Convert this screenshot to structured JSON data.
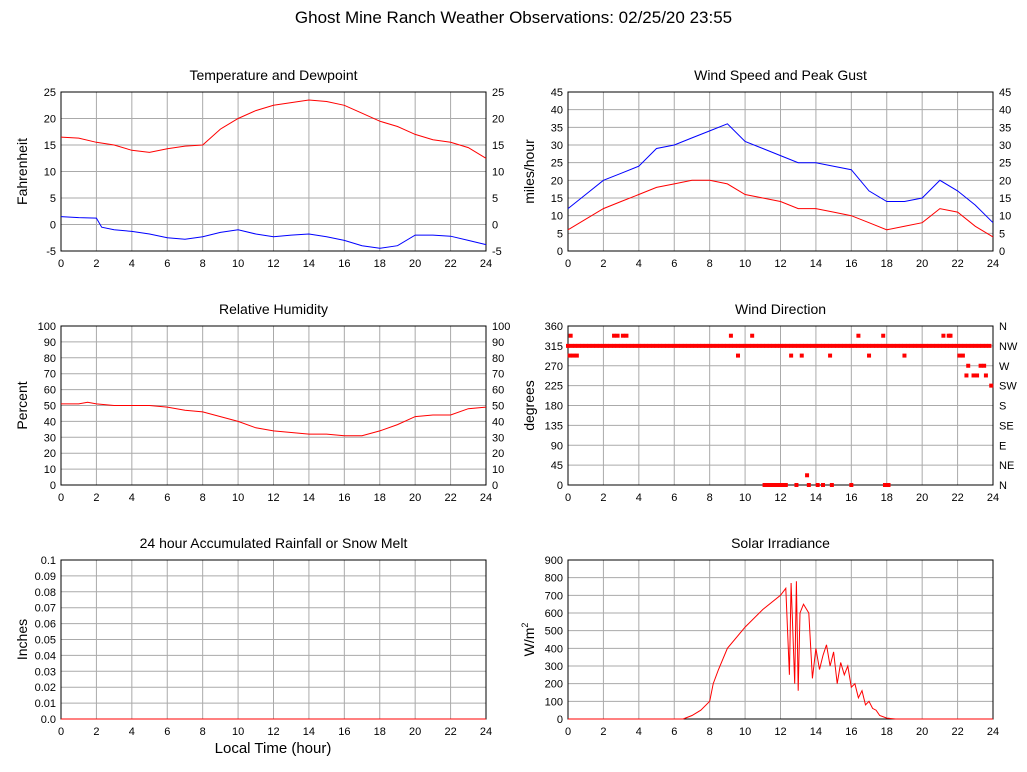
{
  "page_title": "Ghost Mine Ranch Weather Observations: 02/25/20 23:55",
  "shared_xlabel": "Local Time (hour)",
  "colors": {
    "red": "#ff0000",
    "blue": "#0000ff",
    "grid": "#aaaaaa",
    "axes": "#000000"
  },
  "chart_data": [
    {
      "id": "temp",
      "type": "line",
      "title": "Temperature and Dewpoint",
      "ylabel": "Fahrenheit",
      "xlim": [
        0,
        24
      ],
      "ylim": [
        -5,
        25
      ],
      "xticks": [
        0,
        2,
        4,
        6,
        8,
        10,
        12,
        14,
        16,
        18,
        20,
        22,
        24
      ],
      "yticks": [
        -5,
        0,
        5,
        10,
        15,
        20,
        25
      ],
      "right_axis_labels": [
        "-5",
        "0",
        "5",
        "10",
        "15",
        "20",
        "25"
      ],
      "series": [
        {
          "color": "#ff0000",
          "x": [
            0,
            1,
            2,
            3,
            4,
            5,
            6,
            7,
            8,
            9,
            10,
            11,
            12,
            13,
            14,
            15,
            16,
            17,
            18,
            19,
            20,
            21,
            22,
            23,
            24
          ],
          "y": [
            16.5,
            16.3,
            15.5,
            15,
            14,
            13.6,
            14.3,
            14.8,
            15,
            18,
            20,
            21.5,
            22.5,
            23,
            23.5,
            23.2,
            22.5,
            21,
            19.5,
            18.5,
            17,
            16,
            15.5,
            14.5,
            12.5
          ]
        },
        {
          "color": "#0000ff",
          "x": [
            0,
            1,
            2,
            2.3,
            3,
            4,
            5,
            6,
            7,
            8,
            9,
            10,
            11,
            12,
            13,
            14,
            15,
            16,
            17,
            18,
            19,
            20,
            21,
            22,
            23,
            24
          ],
          "y": [
            1.5,
            1.3,
            1.2,
            -0.5,
            -1,
            -1.3,
            -1.8,
            -2.5,
            -2.8,
            -2.3,
            -1.5,
            -1,
            -1.8,
            -2.3,
            -2,
            -1.8,
            -2.3,
            -3,
            -4,
            -4.5,
            -4,
            -2,
            -2,
            -2.2,
            -3,
            -3.8
          ]
        }
      ]
    },
    {
      "id": "wind",
      "type": "line",
      "title": "Wind Speed and Peak Gust",
      "ylabel": "miles/hour",
      "xlim": [
        0,
        24
      ],
      "ylim": [
        0,
        45
      ],
      "xticks": [
        0,
        2,
        4,
        6,
        8,
        10,
        12,
        14,
        16,
        18,
        20,
        22,
        24
      ],
      "yticks": [
        0,
        5,
        10,
        15,
        20,
        25,
        30,
        35,
        40,
        45
      ],
      "right_axis_labels": [
        "0",
        "5",
        "10",
        "15",
        "20",
        "25",
        "30",
        "35",
        "40",
        "45"
      ],
      "series": [
        {
          "color": "#0000ff",
          "x": [
            0,
            1,
            2,
            3,
            4,
            5,
            6,
            7,
            8,
            9,
            10,
            11,
            12,
            13,
            14,
            15,
            16,
            17,
            18,
            19,
            20,
            21,
            22,
            23,
            24
          ],
          "y": [
            12,
            16,
            20,
            22,
            24,
            29,
            30,
            32,
            34,
            36,
            31,
            29,
            27,
            25,
            25,
            24,
            23,
            17,
            14,
            14,
            15,
            20,
            17,
            13,
            8
          ]
        },
        {
          "color": "#ff0000",
          "x": [
            0,
            1,
            2,
            3,
            4,
            5,
            6,
            7,
            8,
            9,
            10,
            11,
            12,
            13,
            14,
            15,
            16,
            17,
            18,
            19,
            20,
            21,
            22,
            23,
            24
          ],
          "y": [
            6,
            9,
            12,
            14,
            16,
            18,
            19,
            20,
            20,
            19,
            16,
            15,
            14,
            12,
            12,
            11,
            10,
            8,
            6,
            7,
            8,
            12,
            11,
            7,
            4
          ]
        }
      ]
    },
    {
      "id": "rh",
      "type": "line",
      "title": "Relative Humidity",
      "ylabel": "Percent",
      "xlim": [
        0,
        24
      ],
      "ylim": [
        0,
        100
      ],
      "xticks": [
        0,
        2,
        4,
        6,
        8,
        10,
        12,
        14,
        16,
        18,
        20,
        22,
        24
      ],
      "yticks": [
        0,
        10,
        20,
        30,
        40,
        50,
        60,
        70,
        80,
        90,
        100
      ],
      "right_axis_labels": [
        "0",
        "10",
        "20",
        "30",
        "40",
        "50",
        "60",
        "70",
        "80",
        "90",
        "100"
      ],
      "series": [
        {
          "color": "#ff0000",
          "x": [
            0,
            1,
            1.5,
            2,
            3,
            4,
            5,
            6,
            7,
            8,
            9,
            10,
            11,
            12,
            13,
            14,
            15,
            16,
            17,
            18,
            19,
            20,
            21,
            22,
            23,
            24
          ],
          "y": [
            51,
            51,
            52,
            51,
            50,
            50,
            50,
            49,
            47,
            46,
            43,
            40,
            36,
            34,
            33,
            32,
            32,
            31,
            31,
            34,
            38,
            43,
            44,
            44,
            48,
            49
          ]
        }
      ]
    },
    {
      "id": "dir",
      "type": "scatter",
      "title": "Wind Direction",
      "ylabel": "degrees",
      "xlim": [
        0,
        24
      ],
      "ylim": [
        0,
        360
      ],
      "xticks": [
        0,
        2,
        4,
        6,
        8,
        10,
        12,
        14,
        16,
        18,
        20,
        22,
        24
      ],
      "yticks": [
        0,
        45,
        90,
        135,
        180,
        225,
        270,
        315,
        360
      ],
      "right_axis_labels": [
        "N",
        "NE",
        "E",
        "SE",
        "S",
        "SW",
        "W",
        "NW",
        "N"
      ],
      "series": [
        {
          "color": "#ff0000",
          "x": [
            0,
            0.2,
            0.4,
            0.6,
            0.8,
            1,
            1.2,
            1.4,
            1.6,
            1.8,
            2,
            2.2,
            2.4,
            2.6,
            2.8,
            3,
            3.2,
            3.4,
            3.6,
            3.8,
            4,
            4.2,
            4.4,
            4.6,
            4.8,
            5,
            5.2,
            5.4,
            5.6,
            5.8,
            6,
            6.2,
            6.4,
            6.6,
            6.8,
            7,
            7.2,
            7.4,
            7.6,
            7.8,
            8,
            8.2,
            8.4,
            8.6,
            8.8,
            9,
            9.2,
            9.4,
            9.6,
            9.8,
            10,
            10.2,
            10.4,
            10.6,
            10.8,
            11,
            11.2,
            11.4,
            11.6,
            11.8,
            12,
            12.2,
            12.4,
            12.6,
            12.8,
            13,
            13.2,
            13.4,
            13.6,
            13.8,
            14,
            14.2,
            14.4,
            14.6,
            14.8,
            15,
            15.2,
            15.4,
            15.6,
            15.8,
            16,
            16.2,
            16.4,
            16.6,
            16.8,
            17,
            17.2,
            17.4,
            17.6,
            17.8,
            18,
            18.2,
            18.4,
            18.6,
            18.8,
            19,
            19.2,
            19.4,
            19.6,
            19.8,
            20,
            20.2,
            20.4,
            20.6,
            20.8,
            21,
            21.2,
            21.4,
            21.6,
            21.8,
            22,
            22.2,
            22.4,
            22.6,
            22.8,
            23,
            23.2,
            23.4,
            23.6,
            23.8,
            0.1,
            0.3,
            0.5,
            2.6,
            2.8,
            3.1,
            3.3,
            9.2,
            9.6,
            10.4,
            11.1,
            11.3,
            11.5,
            11.7,
            11.9,
            12.1,
            12.3,
            12.9,
            13.6,
            14.1,
            14.4,
            14.9,
            16,
            17.9,
            18.1,
            12.6,
            13.2,
            14.8,
            17,
            19,
            21.2,
            21.6,
            22.3,
            22.6,
            22.9,
            23.3,
            23.6,
            22.1,
            23.1,
            23.5,
            23.9,
            0.15,
            13.5,
            16.4,
            17.8,
            21.5,
            22.5
          ],
          "y": [
            315,
            315,
            315,
            315,
            315,
            315,
            315,
            315,
            315,
            315,
            315,
            315,
            315,
            315,
            315,
            315,
            315,
            315,
            315,
            315,
            315,
            315,
            315,
            315,
            315,
            315,
            315,
            315,
            315,
            315,
            315,
            315,
            315,
            315,
            315,
            315,
            315,
            315,
            315,
            315,
            315,
            315,
            315,
            315,
            315,
            315,
            315,
            315,
            315,
            315,
            315,
            315,
            315,
            315,
            315,
            315,
            315,
            315,
            315,
            315,
            315,
            315,
            315,
            315,
            315,
            315,
            315,
            315,
            315,
            315,
            315,
            315,
            315,
            315,
            315,
            315,
            315,
            315,
            315,
            315,
            315,
            315,
            315,
            315,
            315,
            315,
            315,
            315,
            315,
            315,
            315,
            315,
            315,
            315,
            315,
            315,
            315,
            315,
            315,
            315,
            315,
            315,
            315,
            315,
            315,
            315,
            315,
            315,
            315,
            315,
            315,
            315,
            315,
            315,
            315,
            315,
            315,
            315,
            315,
            315,
            293,
            293,
            293,
            338,
            338,
            338,
            338,
            338,
            293,
            338,
            0,
            0,
            0,
            0,
            0,
            0,
            0,
            0,
            0,
            0,
            0,
            0,
            0,
            0,
            0,
            293,
            293,
            293,
            293,
            293,
            338,
            338,
            293,
            270,
            248,
            270,
            248,
            293,
            248,
            270,
            225,
            338,
            22,
            338,
            338,
            338,
            248
          ]
        }
      ]
    },
    {
      "id": "rain",
      "type": "line",
      "title": "24 hour Accumulated Rainfall or Snow Melt",
      "ylabel": "Inches",
      "xlim": [
        0,
        24
      ],
      "ylim": [
        0,
        0.1
      ],
      "xticks": [
        0,
        2,
        4,
        6,
        8,
        10,
        12,
        14,
        16,
        18,
        20,
        22,
        24
      ],
      "yticks": [
        0,
        0.01,
        0.02,
        0.03,
        0.04,
        0.05,
        0.06,
        0.07,
        0.08,
        0.09,
        0.1
      ],
      "ytick_labels": [
        "0.0",
        "0.01",
        "0.02",
        "0.03",
        "0.04",
        "0.05",
        "0.06",
        "0.07",
        "0.08",
        "0.09",
        "0.1"
      ],
      "series": [
        {
          "color": "#ff0000",
          "x": [
            0,
            24
          ],
          "y": [
            0,
            0
          ]
        }
      ]
    },
    {
      "id": "solar",
      "type": "line",
      "title": "Solar Irradiance",
      "ylabel": "W/m",
      "ylabel_sup": "2",
      "xlim": [
        0,
        24
      ],
      "ylim": [
        0,
        900
      ],
      "xticks": [
        0,
        2,
        4,
        6,
        8,
        10,
        12,
        14,
        16,
        18,
        20,
        22,
        24
      ],
      "yticks": [
        0,
        100,
        200,
        300,
        400,
        500,
        600,
        700,
        800,
        900
      ],
      "series": [
        {
          "color": "#ff0000",
          "x": [
            0,
            6.5,
            7,
            7.5,
            8,
            8.2,
            8.5,
            9,
            10,
            11,
            12,
            12.3,
            12.5,
            12.6,
            12.8,
            12.9,
            13,
            13.1,
            13.3,
            13.6,
            13.8,
            14,
            14.2,
            14.4,
            14.6,
            14.8,
            15,
            15.2,
            15.4,
            15.6,
            15.8,
            16,
            16.2,
            16.4,
            16.6,
            16.8,
            17,
            17.2,
            17.4,
            17.6,
            18,
            18.5,
            24
          ],
          "y": [
            0,
            0,
            20,
            50,
            100,
            200,
            280,
            400,
            520,
            620,
            700,
            740,
            250,
            770,
            200,
            780,
            160,
            600,
            650,
            600,
            230,
            400,
            280,
            360,
            420,
            300,
            380,
            200,
            320,
            250,
            300,
            180,
            200,
            120,
            160,
            80,
            100,
            60,
            50,
            20,
            5,
            0,
            0
          ]
        }
      ]
    }
  ]
}
